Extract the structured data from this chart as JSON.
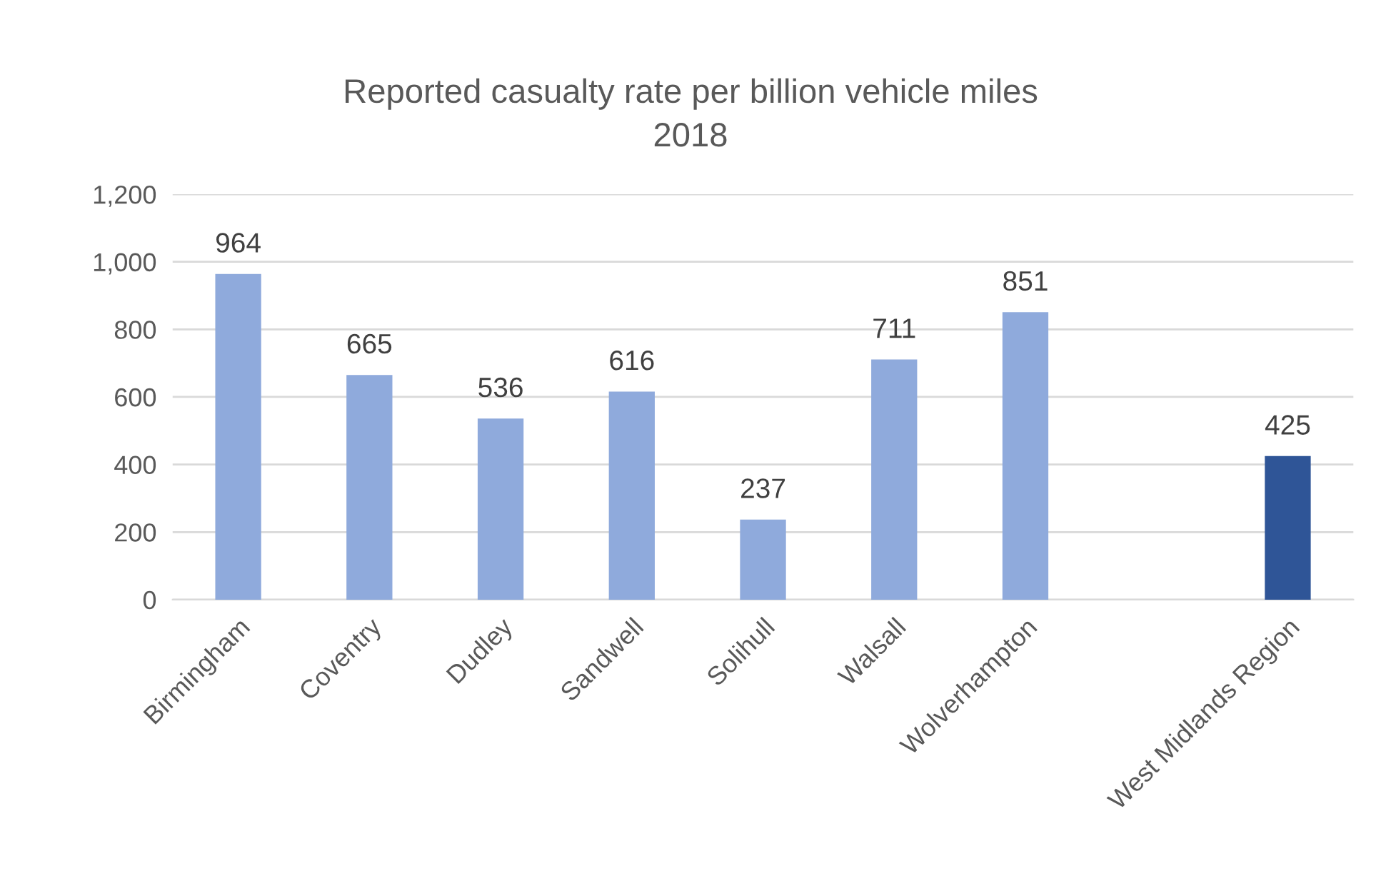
{
  "chart_data": {
    "type": "bar",
    "title": "Reported casualty rate per billion vehicle miles\n2018",
    "categories": [
      "Birmingham",
      "Coventry",
      "Dudley",
      "Sandwell",
      "Solihull",
      "Walsall",
      "Wolverhampton",
      null,
      "West Midlands Region"
    ],
    "values": [
      964,
      665,
      536,
      616,
      237,
      711,
      851,
      null,
      425
    ],
    "colors": [
      "#8faadc",
      "#8faadc",
      "#8faadc",
      "#8faadc",
      "#8faadc",
      "#8faadc",
      "#8faadc",
      null,
      "#2f5597"
    ],
    "ylim": [
      0,
      1200
    ],
    "yticks": [
      0,
      200,
      400,
      600,
      800,
      {
        "value": 1000,
        "label": "1,000"
      },
      {
        "value": 1200,
        "label": "1,200"
      }
    ],
    "grid": "y",
    "data_labels": true
  }
}
